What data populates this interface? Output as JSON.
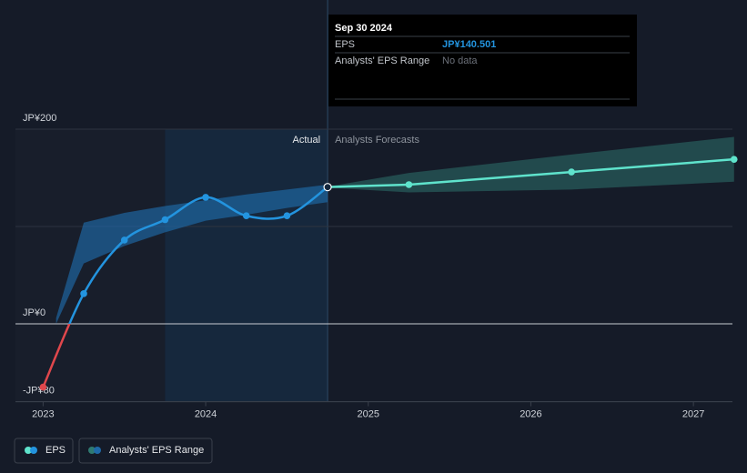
{
  "chart_data": {
    "type": "line",
    "xlim": [
      2022.83,
      2027.24
    ],
    "ylim": [
      -80,
      200
    ],
    "xticks": [
      2023,
      2024,
      2025,
      2026,
      2027
    ],
    "yticks": [
      {
        "value": -80,
        "label": "-JP¥80"
      },
      {
        "value": 0,
        "label": "JP¥0"
      },
      {
        "value": 100,
        "label": null
      },
      {
        "value": 200,
        "label": "JP¥200"
      }
    ],
    "grid": true,
    "shaded_region": [
      2023.75,
      2024.75
    ],
    "annotations": {
      "actual": "Actual",
      "forecast": "Analysts Forecasts"
    },
    "series": [
      {
        "name": "EPS",
        "color": "#2394df",
        "negative_color": "#e0474c",
        "x": [
          2023.0,
          2023.25,
          2023.5,
          2023.75,
          2024.0,
          2024.25,
          2024.5,
          2024.75
        ],
        "values": [
          -65,
          31,
          86,
          107,
          130,
          111,
          111,
          140.501
        ]
      }
    ],
    "forecast": {
      "color": "#5fe3cc",
      "x": [
        2024.75,
        2025.25,
        2026.25,
        2027.25
      ],
      "values": [
        140.501,
        143,
        156,
        169
      ]
    },
    "range": {
      "name": "Analysts' EPS Range",
      "past": {
        "color": "#1f6aa8",
        "x": [
          2023.08,
          2023.25,
          2023.5,
          2023.75,
          2024.0,
          2024.25,
          2024.5,
          2024.75
        ],
        "low": [
          0,
          62,
          80,
          94,
          106,
          112,
          119,
          125
        ],
        "high": [
          6,
          104,
          114,
          121,
          127,
          133,
          138,
          143
        ]
      },
      "future": {
        "color": "#2f7a72",
        "x": [
          2024.75,
          2025.25,
          2026.25,
          2027.25
        ],
        "low": [
          140,
          135,
          138,
          146
        ],
        "high": [
          141,
          155,
          174,
          192
        ]
      }
    },
    "tooltip": {
      "title": "Sep 30 2024",
      "rows": [
        {
          "label": "EPS",
          "value": "JP¥140.501"
        },
        {
          "label": "Analysts' EPS Range",
          "value": "No data"
        }
      ]
    }
  }
}
